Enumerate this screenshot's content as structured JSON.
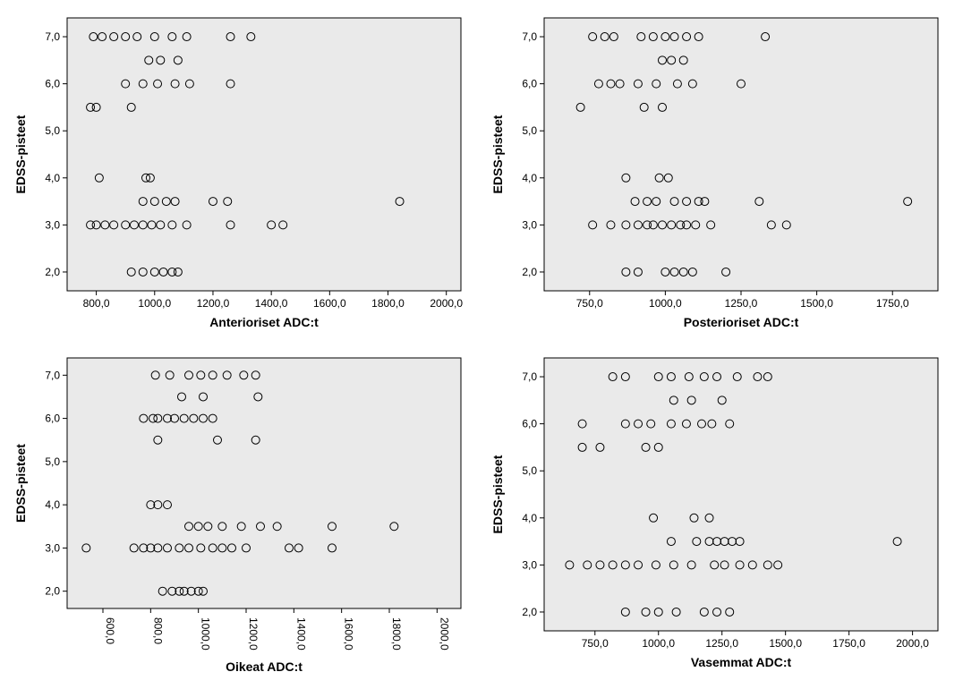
{
  "layout": {
    "rows": 2,
    "cols": 2,
    "total_width": 1076,
    "total_height": 770
  },
  "style": {
    "plot_bg": "#eaeaea",
    "border_color": "#000000",
    "marker_radius": 4.5,
    "marker_stroke": "#000000",
    "marker_fill": "none",
    "tick_fontsize": 12,
    "title_fontsize": 14,
    "title_weight": "bold"
  },
  "panels": [
    {
      "id": "p0",
      "type": "scatter",
      "xlabel": "Anterioriset ADC:t",
      "ylabel": "EDSS-pisteet",
      "xlim": [
        700,
        2050
      ],
      "ylim": [
        1.6,
        7.4
      ],
      "xticks": [
        800.0,
        1000.0,
        1200.0,
        1400.0,
        1600.0,
        1800.0,
        2000.0
      ],
      "xtick_labels": [
        "800,0",
        "1000,0",
        "1200,0",
        "1400,0",
        "1600,0",
        "1800,0",
        "2000,0"
      ],
      "yticks": [
        2.0,
        3.0,
        4.0,
        5.0,
        6.0,
        7.0
      ],
      "ytick_labels": [
        "2,0",
        "3,0",
        "4,0",
        "5,0",
        "6,0",
        "7,0"
      ],
      "x_orientation": "horizontal",
      "points": [
        [
          790,
          7.0
        ],
        [
          820,
          7.0
        ],
        [
          860,
          7.0
        ],
        [
          900,
          7.0
        ],
        [
          940,
          7.0
        ],
        [
          1000,
          7.0
        ],
        [
          1060,
          7.0
        ],
        [
          1110,
          7.0
        ],
        [
          1260,
          7.0
        ],
        [
          1330,
          7.0
        ],
        [
          980,
          6.5
        ],
        [
          1020,
          6.5
        ],
        [
          1080,
          6.5
        ],
        [
          900,
          6.0
        ],
        [
          960,
          6.0
        ],
        [
          1010,
          6.0
        ],
        [
          1070,
          6.0
        ],
        [
          1120,
          6.0
        ],
        [
          1260,
          6.0
        ],
        [
          780,
          5.5
        ],
        [
          800,
          5.5
        ],
        [
          920,
          5.5
        ],
        [
          810,
          4.0
        ],
        [
          970,
          4.0
        ],
        [
          985,
          4.0
        ],
        [
          960,
          3.5
        ],
        [
          1000,
          3.5
        ],
        [
          1040,
          3.5
        ],
        [
          1070,
          3.5
        ],
        [
          1200,
          3.5
        ],
        [
          1250,
          3.5
        ],
        [
          1840,
          3.5
        ],
        [
          780,
          3.0
        ],
        [
          800,
          3.0
        ],
        [
          830,
          3.0
        ],
        [
          860,
          3.0
        ],
        [
          900,
          3.0
        ],
        [
          930,
          3.0
        ],
        [
          960,
          3.0
        ],
        [
          990,
          3.0
        ],
        [
          1020,
          3.0
        ],
        [
          1060,
          3.0
        ],
        [
          1110,
          3.0
        ],
        [
          1260,
          3.0
        ],
        [
          1400,
          3.0
        ],
        [
          1440,
          3.0
        ],
        [
          920,
          2.0
        ],
        [
          960,
          2.0
        ],
        [
          1000,
          2.0
        ],
        [
          1030,
          2.0
        ],
        [
          1060,
          2.0
        ],
        [
          1080,
          2.0
        ]
      ]
    },
    {
      "id": "p1",
      "type": "scatter",
      "xlabel": "Posterioriset ADC:t",
      "ylabel": "EDSS-pisteet",
      "xlim": [
        600,
        1900
      ],
      "ylim": [
        1.6,
        7.4
      ],
      "xticks": [
        750.0,
        1000.0,
        1250.0,
        1500.0,
        1750.0
      ],
      "xtick_labels": [
        "750,0",
        "1000,0",
        "1250,0",
        "1500,0",
        "1750,0"
      ],
      "yticks": [
        2.0,
        3.0,
        4.0,
        5.0,
        6.0,
        7.0
      ],
      "ytick_labels": [
        "2,0",
        "3,0",
        "4,0",
        "5,0",
        "6,0",
        "7,0"
      ],
      "x_orientation": "horizontal",
      "points": [
        [
          760,
          7.0
        ],
        [
          800,
          7.0
        ],
        [
          830,
          7.0
        ],
        [
          920,
          7.0
        ],
        [
          960,
          7.0
        ],
        [
          1000,
          7.0
        ],
        [
          1030,
          7.0
        ],
        [
          1070,
          7.0
        ],
        [
          1110,
          7.0
        ],
        [
          1330,
          7.0
        ],
        [
          990,
          6.5
        ],
        [
          1020,
          6.5
        ],
        [
          1060,
          6.5
        ],
        [
          780,
          6.0
        ],
        [
          820,
          6.0
        ],
        [
          850,
          6.0
        ],
        [
          910,
          6.0
        ],
        [
          970,
          6.0
        ],
        [
          1040,
          6.0
        ],
        [
          1090,
          6.0
        ],
        [
          1250,
          6.0
        ],
        [
          720,
          5.5
        ],
        [
          930,
          5.5
        ],
        [
          990,
          5.5
        ],
        [
          870,
          4.0
        ],
        [
          980,
          4.0
        ],
        [
          1010,
          4.0
        ],
        [
          900,
          3.5
        ],
        [
          940,
          3.5
        ],
        [
          970,
          3.5
        ],
        [
          1030,
          3.5
        ],
        [
          1070,
          3.5
        ],
        [
          1110,
          3.5
        ],
        [
          1130,
          3.5
        ],
        [
          1310,
          3.5
        ],
        [
          1800,
          3.5
        ],
        [
          760,
          3.0
        ],
        [
          820,
          3.0
        ],
        [
          870,
          3.0
        ],
        [
          910,
          3.0
        ],
        [
          940,
          3.0
        ],
        [
          960,
          3.0
        ],
        [
          990,
          3.0
        ],
        [
          1020,
          3.0
        ],
        [
          1050,
          3.0
        ],
        [
          1070,
          3.0
        ],
        [
          1100,
          3.0
        ],
        [
          1150,
          3.0
        ],
        [
          1350,
          3.0
        ],
        [
          1400,
          3.0
        ],
        [
          870,
          2.0
        ],
        [
          910,
          2.0
        ],
        [
          1000,
          2.0
        ],
        [
          1030,
          2.0
        ],
        [
          1060,
          2.0
        ],
        [
          1090,
          2.0
        ],
        [
          1200,
          2.0
        ]
      ]
    },
    {
      "id": "p2",
      "type": "scatter",
      "xlabel": "Oikeat ADC:t",
      "ylabel": "EDSS-pisteet",
      "xlim": [
        450,
        2100
      ],
      "ylim": [
        1.6,
        7.4
      ],
      "xticks": [
        600.0,
        800.0,
        1000.0,
        1200.0,
        1400.0,
        1600.0,
        1800.0,
        2000.0
      ],
      "xtick_labels": [
        "600,0",
        "800,0",
        "1000,0",
        "1200,0",
        "1400,0",
        "1600,0",
        "1800,0",
        "2000,0"
      ],
      "yticks": [
        2.0,
        3.0,
        4.0,
        5.0,
        6.0,
        7.0
      ],
      "ytick_labels": [
        "2,0",
        "3,0",
        "4,0",
        "5,0",
        "6,0",
        "7,0"
      ],
      "x_orientation": "vertical",
      "points": [
        [
          820,
          7.0
        ],
        [
          880,
          7.0
        ],
        [
          960,
          7.0
        ],
        [
          1010,
          7.0
        ],
        [
          1060,
          7.0
        ],
        [
          1120,
          7.0
        ],
        [
          1190,
          7.0
        ],
        [
          1240,
          7.0
        ],
        [
          930,
          6.5
        ],
        [
          1020,
          6.5
        ],
        [
          1250,
          6.5
        ],
        [
          770,
          6.0
        ],
        [
          810,
          6.0
        ],
        [
          830,
          6.0
        ],
        [
          870,
          6.0
        ],
        [
          900,
          6.0
        ],
        [
          940,
          6.0
        ],
        [
          980,
          6.0
        ],
        [
          1020,
          6.0
        ],
        [
          1060,
          6.0
        ],
        [
          830,
          5.5
        ],
        [
          1080,
          5.5
        ],
        [
          1240,
          5.5
        ],
        [
          800,
          4.0
        ],
        [
          830,
          4.0
        ],
        [
          870,
          4.0
        ],
        [
          960,
          3.5
        ],
        [
          1000,
          3.5
        ],
        [
          1040,
          3.5
        ],
        [
          1100,
          3.5
        ],
        [
          1180,
          3.5
        ],
        [
          1260,
          3.5
        ],
        [
          1330,
          3.5
        ],
        [
          1560,
          3.5
        ],
        [
          1820,
          3.5
        ],
        [
          530,
          3.0
        ],
        [
          730,
          3.0
        ],
        [
          770,
          3.0
        ],
        [
          800,
          3.0
        ],
        [
          830,
          3.0
        ],
        [
          870,
          3.0
        ],
        [
          920,
          3.0
        ],
        [
          960,
          3.0
        ],
        [
          1010,
          3.0
        ],
        [
          1060,
          3.0
        ],
        [
          1100,
          3.0
        ],
        [
          1140,
          3.0
        ],
        [
          1200,
          3.0
        ],
        [
          1380,
          3.0
        ],
        [
          1420,
          3.0
        ],
        [
          1560,
          3.0
        ],
        [
          850,
          2.0
        ],
        [
          890,
          2.0
        ],
        [
          920,
          2.0
        ],
        [
          940,
          2.0
        ],
        [
          970,
          2.0
        ],
        [
          1000,
          2.0
        ],
        [
          1020,
          2.0
        ]
      ]
    },
    {
      "id": "p3",
      "type": "scatter",
      "xlabel": "Vasemmat ADC:t",
      "ylabel": "EDSS-pisteet",
      "xlim": [
        550,
        2100
      ],
      "ylim": [
        1.6,
        7.4
      ],
      "xticks": [
        750.0,
        1000.0,
        1250.0,
        1500.0,
        1750.0,
        2000.0
      ],
      "xtick_labels": [
        "750,0",
        "1000,0",
        "1250,0",
        "1500,0",
        "1750,0",
        "2000,0"
      ],
      "yticks": [
        2.0,
        3.0,
        4.0,
        5.0,
        6.0,
        7.0
      ],
      "ytick_labels": [
        "2,0",
        "3,0",
        "4,0",
        "5,0",
        "6,0",
        "7,0"
      ],
      "x_orientation": "horizontal",
      "points": [
        [
          820,
          7.0
        ],
        [
          870,
          7.0
        ],
        [
          1000,
          7.0
        ],
        [
          1050,
          7.0
        ],
        [
          1120,
          7.0
        ],
        [
          1180,
          7.0
        ],
        [
          1230,
          7.0
        ],
        [
          1310,
          7.0
        ],
        [
          1390,
          7.0
        ],
        [
          1430,
          7.0
        ],
        [
          1060,
          6.5
        ],
        [
          1130,
          6.5
        ],
        [
          1250,
          6.5
        ],
        [
          700,
          6.0
        ],
        [
          870,
          6.0
        ],
        [
          920,
          6.0
        ],
        [
          970,
          6.0
        ],
        [
          1050,
          6.0
        ],
        [
          1110,
          6.0
        ],
        [
          1170,
          6.0
        ],
        [
          1210,
          6.0
        ],
        [
          1280,
          6.0
        ],
        [
          700,
          5.5
        ],
        [
          770,
          5.5
        ],
        [
          950,
          5.5
        ],
        [
          1000,
          5.5
        ],
        [
          980,
          4.0
        ],
        [
          1140,
          4.0
        ],
        [
          1200,
          4.0
        ],
        [
          1050,
          3.5
        ],
        [
          1150,
          3.5
        ],
        [
          1200,
          3.5
        ],
        [
          1230,
          3.5
        ],
        [
          1260,
          3.5
        ],
        [
          1290,
          3.5
        ],
        [
          1320,
          3.5
        ],
        [
          1940,
          3.5
        ],
        [
          650,
          3.0
        ],
        [
          720,
          3.0
        ],
        [
          770,
          3.0
        ],
        [
          820,
          3.0
        ],
        [
          870,
          3.0
        ],
        [
          920,
          3.0
        ],
        [
          990,
          3.0
        ],
        [
          1060,
          3.0
        ],
        [
          1130,
          3.0
        ],
        [
          1220,
          3.0
        ],
        [
          1260,
          3.0
        ],
        [
          1320,
          3.0
        ],
        [
          1370,
          3.0
        ],
        [
          1430,
          3.0
        ],
        [
          1470,
          3.0
        ],
        [
          870,
          2.0
        ],
        [
          950,
          2.0
        ],
        [
          1000,
          2.0
        ],
        [
          1070,
          2.0
        ],
        [
          1180,
          2.0
        ],
        [
          1230,
          2.0
        ],
        [
          1280,
          2.0
        ]
      ]
    }
  ]
}
